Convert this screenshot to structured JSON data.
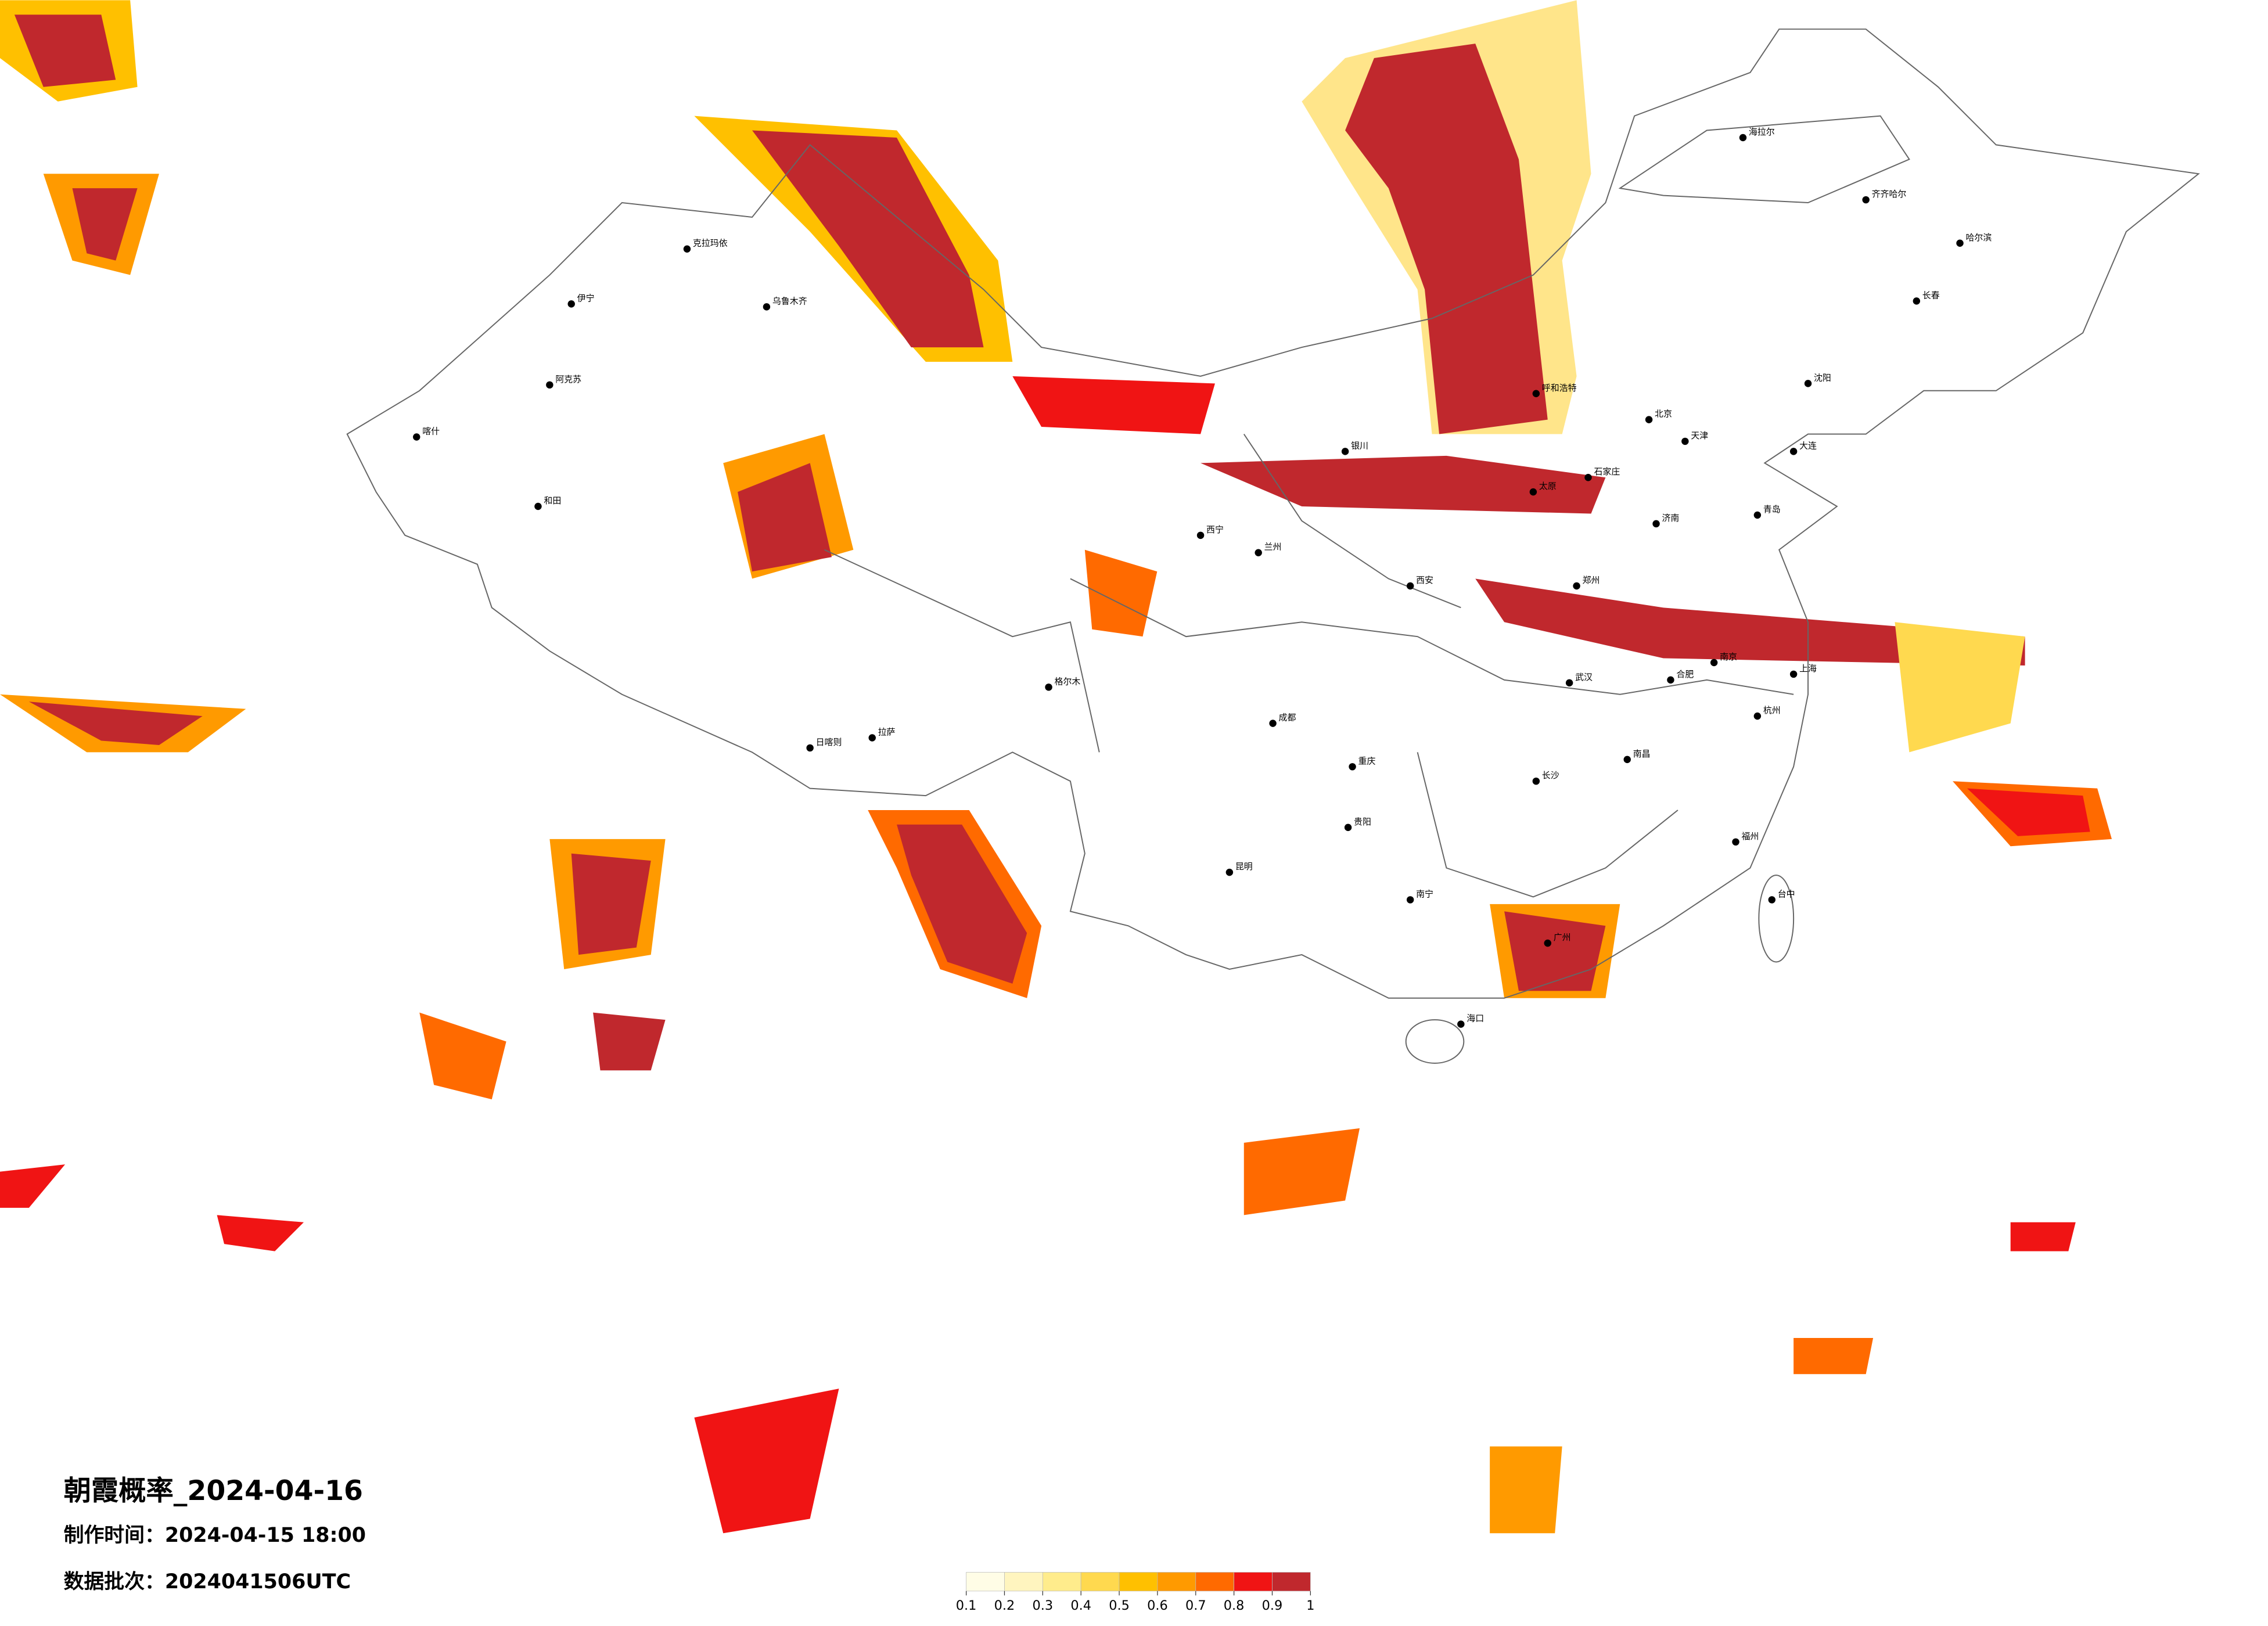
{
  "title": "朝霞概率_2024-04-16",
  "issue_time": "制作时间：2024-04-15 18:00",
  "batch": "数据批次：2024041506UTC",
  "colorbar": {
    "ticks": [
      0.1,
      0.2,
      0.3,
      0.4,
      0.5,
      0.6,
      0.7,
      0.8,
      0.9,
      1
    ],
    "colors": [
      "#fffde6",
      "#fff5bf",
      "#ffec8c",
      "#ffd94f",
      "#ffc000",
      "#ff9a00",
      "#ff6a00",
      "#f01414",
      "#c0282d"
    ]
  },
  "cities": [
    "哈尔滨",
    "长春",
    "沈阳",
    "海拉尔",
    "齐齐哈尔",
    "乌鲁木齐",
    "克拉玛依",
    "伊宁",
    "阿克苏",
    "喀什",
    "和田",
    "拉萨",
    "日喀则",
    "西宁",
    "兰州",
    "银川",
    "呼和浩特",
    "太原",
    "石家庄",
    "北京",
    "天津",
    "济南",
    "郑州",
    "西安",
    "成都",
    "重庆",
    "贵阳",
    "昆明",
    "南宁",
    "广州",
    "长沙",
    "武汉",
    "南昌",
    "合肥",
    "南京",
    "上海",
    "杭州",
    "福州",
    "海口",
    "台中",
    "格尔木",
    "大连",
    "青岛"
  ]
}
